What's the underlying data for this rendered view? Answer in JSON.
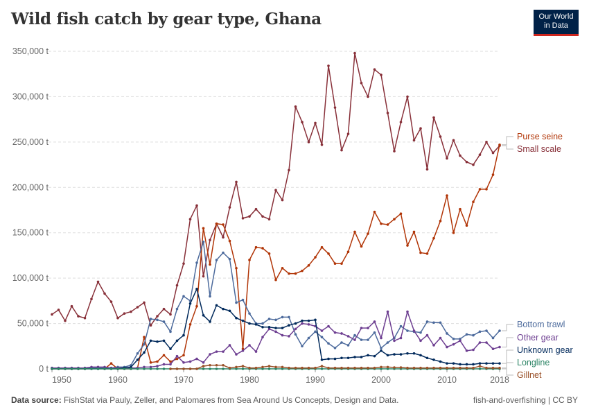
{
  "title": "Wild fish catch by gear type, Ghana",
  "logo": {
    "line1": "Our World",
    "line2": "in Data"
  },
  "footer": {
    "source_label": "Data source:",
    "source_text": "FishStat via Pauly, Zeller, and Palomares from Sea Around Us Concepts, Design and Data.",
    "right": "fish-and-overfishing | CC BY"
  },
  "chart_data": {
    "type": "line",
    "title": "Wild fish catch by gear type, Ghana",
    "ylim": [
      0,
      350000
    ],
    "y_ticks": [
      0,
      50000,
      100000,
      150000,
      200000,
      250000,
      300000,
      350000
    ],
    "y_tick_labels": [
      "0 t",
      "50,000 t",
      "100,000 t",
      "150,000 t",
      "200,000 t",
      "250,000 t",
      "300,000 t",
      "350,000 t"
    ],
    "x_ticks": [
      1950,
      1960,
      1970,
      1980,
      1990,
      2000,
      2010,
      2018
    ],
    "x_tick_labels": [
      "1950",
      "1960",
      "1970",
      "1980",
      "1990",
      "2000",
      "2010",
      "2018"
    ],
    "xlim": [
      1950,
      2018
    ],
    "grid": "horizontal dashed",
    "legend": "right, end-of-line labels",
    "series": [
      {
        "name": "Small scale",
        "color": "#883039",
        "start": 1950,
        "values": [
          60000,
          65000,
          53000,
          69000,
          58000,
          56000,
          77000,
          96000,
          83000,
          74000,
          56000,
          61000,
          63000,
          68000,
          73000,
          48000,
          58000,
          66000,
          60000,
          92000,
          116000,
          165000,
          180000,
          102000,
          142000,
          160000,
          145000,
          178000,
          206000,
          166000,
          168000,
          176000,
          168000,
          165000,
          197000,
          186000,
          219000,
          289000,
          272000,
          250000,
          271000,
          247000,
          334000,
          288000,
          241000,
          259000,
          348000,
          315000,
          300000,
          330000,
          324000,
          282000,
          240000,
          272000,
          300000,
          252000,
          265000,
          220000,
          277000,
          256000,
          232000,
          252000,
          235000,
          228000,
          225000,
          236000,
          250000,
          238000,
          246000
        ]
      },
      {
        "name": "Purse seine",
        "color": "#b13507",
        "start": 1950,
        "values": [
          0,
          0,
          0,
          0,
          0,
          0,
          1000,
          2000,
          0,
          6000,
          0,
          0,
          0,
          1000,
          35000,
          7000,
          8000,
          15000,
          8000,
          11000,
          15000,
          49000,
          69000,
          155000,
          115000,
          160000,
          159000,
          141000,
          111000,
          22000,
          120000,
          134000,
          133000,
          127000,
          98000,
          111000,
          105000,
          105000,
          108000,
          114000,
          123000,
          134000,
          127000,
          116000,
          116000,
          129000,
          151000,
          135000,
          149000,
          173000,
          160000,
          159000,
          165000,
          171000,
          136000,
          151000,
          128000,
          127000,
          144000,
          163000,
          191000,
          150000,
          176000,
          158000,
          184000,
          198000,
          198000,
          214000,
          247000
        ]
      },
      {
        "name": "Bottom trawl",
        "color": "#4c6a9c",
        "start": 1950,
        "values": [
          1000,
          1000,
          1000,
          1000,
          1000,
          1000,
          1000,
          1000,
          1000,
          1000,
          2000,
          2000,
          4000,
          17000,
          27000,
          55000,
          54000,
          52000,
          41000,
          66000,
          80000,
          75000,
          117000,
          140000,
          80000,
          120000,
          128000,
          121000,
          73000,
          76000,
          61000,
          50000,
          50000,
          55000,
          54000,
          57000,
          57000,
          38000,
          25000,
          34000,
          41000,
          35000,
          28000,
          23000,
          29000,
          26000,
          37000,
          32000,
          32000,
          40000,
          23000,
          29000,
          34000,
          47000,
          42000,
          41000,
          40000,
          52000,
          51000,
          51000,
          39000,
          33000,
          33000,
          38000,
          37000,
          41000,
          42000,
          34000,
          42000
        ]
      },
      {
        "name": "Other gear",
        "color": "#6d3e91",
        "start": 1950,
        "values": [
          1000,
          1000,
          1000,
          1000,
          1000,
          1000,
          2000,
          2000,
          2000,
          1000,
          1000,
          1000,
          1000,
          1000,
          2000,
          2000,
          3000,
          5000,
          5000,
          14000,
          7000,
          8000,
          11000,
          7000,
          16000,
          19000,
          19000,
          26000,
          16000,
          20000,
          26000,
          19000,
          35000,
          44000,
          41000,
          37000,
          36000,
          44000,
          50000,
          49000,
          47000,
          42000,
          47000,
          40000,
          39000,
          36000,
          32000,
          45000,
          45000,
          52000,
          34000,
          63000,
          31000,
          34000,
          63000,
          42000,
          31000,
          37000,
          26000,
          34000,
          24000,
          27000,
          31000,
          20000,
          21000,
          29000,
          29000,
          22000,
          24000
        ]
      },
      {
        "name": "Unknown gear",
        "color": "#00295b",
        "start": 1950,
        "values": [
          0,
          0,
          0,
          0,
          0,
          0,
          0,
          0,
          0,
          0,
          0,
          1000,
          2000,
          10000,
          18000,
          31000,
          30000,
          31000,
          22000,
          31000,
          37000,
          72000,
          88000,
          59000,
          52000,
          70000,
          66000,
          64000,
          56000,
          53000,
          50000,
          49000,
          46000,
          46000,
          45000,
          45000,
          48000,
          50000,
          53000,
          53000,
          54000,
          10000,
          11000,
          11000,
          12000,
          12000,
          13000,
          13000,
          15000,
          14000,
          20000,
          15000,
          16000,
          16000,
          17000,
          17000,
          15000,
          12000,
          10000,
          8000,
          6000,
          6000,
          5000,
          5000,
          5000,
          6000,
          6000,
          6000,
          6000
        ]
      },
      {
        "name": "Longline",
        "color": "#2c8465",
        "start": 1950,
        "values": [
          0,
          0,
          0,
          0,
          0,
          0,
          0,
          0,
          0,
          0,
          0,
          0,
          0,
          0,
          0,
          0,
          0,
          0,
          0,
          0,
          0,
          0,
          0,
          0,
          0,
          0,
          0,
          0,
          0,
          0,
          0,
          0,
          0,
          0,
          0,
          0,
          0,
          0,
          0,
          0,
          0,
          0,
          0,
          0,
          0,
          0,
          0,
          0,
          0,
          0,
          0,
          0,
          0,
          0,
          0,
          0,
          0,
          0,
          0,
          0,
          0,
          0,
          0,
          0,
          0,
          0,
          0,
          0,
          0
        ]
      },
      {
        "name": "Gillnet",
        "color": "#9a5129",
        "start": 1968,
        "values": [
          0,
          0,
          0,
          0,
          0,
          3000,
          4000,
          4000,
          4000,
          1000,
          2000,
          3000,
          1000,
          1000,
          2000,
          3000,
          2000,
          2000,
          1000,
          1000,
          1000,
          1000,
          1000,
          3000,
          1000,
          1000,
          1000,
          1000,
          1000,
          1000,
          1000,
          1000,
          2000,
          2000,
          1500,
          1500,
          1000,
          1000,
          1000,
          1000,
          1000,
          1000,
          1000,
          1000,
          1000,
          1000,
          1000,
          3000,
          1000,
          1000,
          1000
        ]
      }
    ]
  }
}
